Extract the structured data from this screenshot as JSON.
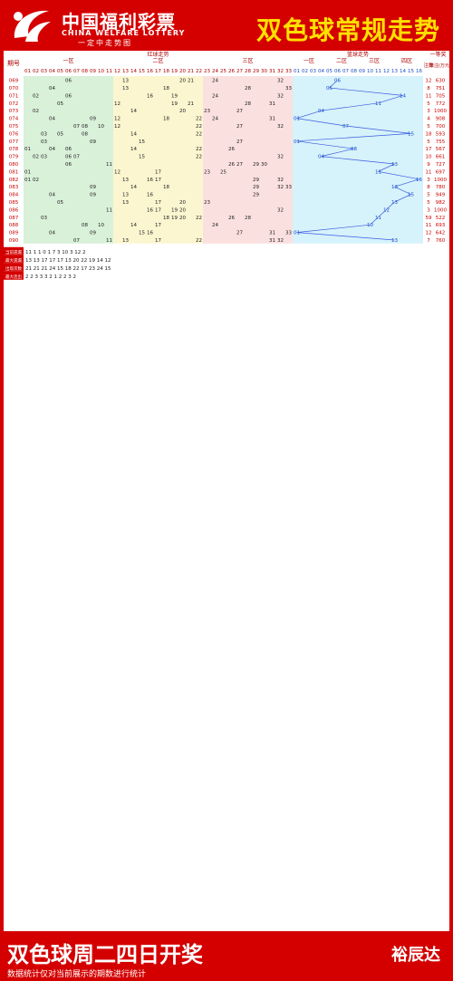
{
  "header": {
    "brand_cn": "中国福利彩票",
    "brand_en": "CHINA WELFARE LOTTERY",
    "brand_slogan": "一定中走势图",
    "title": "双色球常规走势"
  },
  "footer": {
    "title": "双色球周二四日开奖",
    "note": "数据统计仅对当前展示的期数进行统计",
    "brand": "裕辰达"
  },
  "colors": {
    "red_bg": "#d40000",
    "zone1": "#d9f0d9",
    "zone2": "#fbf6d0",
    "zone3": "#fbe0e0",
    "blue_zone": "#d6f2fb",
    "red_ball": "#e00000",
    "blue_ball": "#1a4fc4",
    "line": "#3a5ce0"
  },
  "chart_data": {
    "type": "table",
    "headings": {
      "period": "期号",
      "red_trend": "红球走势",
      "zone1": "一区",
      "zone2": "二区",
      "zone3": "三区",
      "blue_trend": "篮球走势",
      "bz1": "一区",
      "bz2": "二区",
      "bz3": "三区",
      "bz4": "四区",
      "prize": "一等奖",
      "count": "注数",
      "amount": "单注(万元)"
    },
    "red_cols": [
      "01",
      "02",
      "03",
      "04",
      "05",
      "06",
      "07",
      "08",
      "09",
      "10",
      "11",
      "12",
      "13",
      "14",
      "15",
      "16",
      "17",
      "18",
      "19",
      "20",
      "21",
      "22",
      "23",
      "24",
      "25",
      "26",
      "27",
      "28",
      "29",
      "30",
      "31",
      "32",
      "33"
    ],
    "blue_cols": [
      "01",
      "02",
      "03",
      "04",
      "05",
      "06",
      "07",
      "08",
      "09",
      "10",
      "11",
      "12",
      "13",
      "14",
      "15",
      "16"
    ],
    "rows": [
      {
        "p": "069",
        "r": [
          6,
          13,
          20,
          21,
          24,
          32
        ],
        "b": 6,
        "n": "12",
        "a": "630"
      },
      {
        "p": "070",
        "r": [
          4,
          13,
          18,
          28,
          33
        ],
        "b": 5,
        "n": "8",
        "a": "751"
      },
      {
        "p": "071",
        "r": [
          2,
          6,
          16,
          19,
          24,
          32
        ],
        "b": 14,
        "n": "11",
        "a": "705"
      },
      {
        "p": "072",
        "r": [
          5,
          12,
          19,
          21,
          28,
          31
        ],
        "b": 11,
        "n": "5",
        "a": "772"
      },
      {
        "p": "073",
        "r": [
          2,
          14,
          20,
          23,
          27
        ],
        "b": 4,
        "n": "3",
        "a": "1000"
      },
      {
        "p": "074",
        "r": [
          4,
          9,
          12,
          18,
          22,
          24,
          31
        ],
        "b": 1,
        "n": "4",
        "a": "908"
      },
      {
        "p": "075",
        "r": [
          7,
          8,
          10,
          12,
          22,
          27,
          32
        ],
        "b": 7,
        "n": "5",
        "a": "700"
      },
      {
        "p": "076",
        "r": [
          3,
          5,
          8,
          14,
          22
        ],
        "b": 15,
        "n": "18",
        "a": "593"
      },
      {
        "p": "077",
        "r": [
          3,
          9,
          15,
          27
        ],
        "b": 1,
        "n": "5",
        "a": "755"
      },
      {
        "p": "078",
        "r": [
          1,
          4,
          6,
          14,
          22,
          26
        ],
        "b": 8,
        "n": "17",
        "a": "567"
      },
      {
        "p": "079",
        "r": [
          2,
          3,
          6,
          7,
          15,
          22,
          32
        ],
        "b": 4,
        "n": "10",
        "a": "661"
      },
      {
        "p": "080",
        "r": [
          6,
          11,
          26,
          27,
          29,
          30
        ],
        "b": 13,
        "n": "9",
        "a": "727"
      },
      {
        "p": "081",
        "r": [
          1,
          12,
          17,
          23,
          25
        ],
        "b": 11,
        "n": "11",
        "a": "697"
      },
      {
        "p": "082",
        "r": [
          1,
          2,
          13,
          16,
          17,
          29,
          32
        ],
        "b": 16,
        "n": "3",
        "a": "1000"
      },
      {
        "p": "083",
        "r": [
          9,
          14,
          18,
          29,
          32,
          33
        ],
        "b": 13,
        "n": "8",
        "a": "780"
      },
      {
        "p": "084",
        "r": [
          4,
          9,
          13,
          16,
          29
        ],
        "b": 15,
        "n": "5",
        "a": "949"
      },
      {
        "p": "085",
        "r": [
          5,
          13,
          17,
          20,
          23
        ],
        "b": 13,
        "n": "5",
        "a": "982"
      },
      {
        "p": "086",
        "r": [
          11,
          16,
          17,
          19,
          20,
          32
        ],
        "b": 12,
        "n": "3",
        "a": "1000"
      },
      {
        "p": "087",
        "r": [
          3,
          18,
          19,
          20,
          22,
          26,
          28
        ],
        "b": 11,
        "n": "59",
        "a": "522"
      },
      {
        "p": "088",
        "r": [
          8,
          10,
          14,
          17,
          24
        ],
        "b": 10,
        "n": "11",
        "a": "693"
      },
      {
        "p": "089",
        "r": [
          4,
          9,
          15,
          16,
          27,
          31,
          33
        ],
        "b": 1,
        "n": "12",
        "a": "642"
      },
      {
        "p": "090",
        "r": [
          7,
          11,
          13,
          17,
          22,
          31,
          32
        ],
        "b": 13,
        "n": "7",
        "a": "760"
      }
    ],
    "stats_labels": [
      "当前遗漏",
      "最大遗漏",
      "出现次数",
      "最大连出"
    ],
    "stats": [
      "11 1 1 0 1 7 3 10 3 12 2",
      "13 13 17 17 17 13 20 22 19 14 12",
      "21 21 21 24 15 18 22 17 23 24 15",
      "2 2 3 3 3 2 1 2 2 3 2"
    ]
  }
}
